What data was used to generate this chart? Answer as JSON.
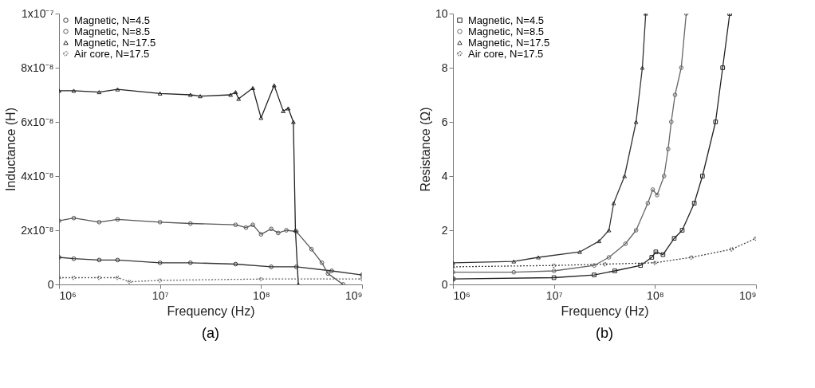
{
  "chart_data": [
    {
      "type": "line",
      "title": "(a)",
      "xlabel": "Frequency (Hz)",
      "ylabel": "Inductance (H)",
      "log": "x",
      "grid": false,
      "legend": "top left",
      "xlim": [
        1000000,
        1000000000
      ],
      "xticks": [
        {
          "value": 1000000,
          "label": "10⁶"
        },
        {
          "value": 10000000,
          "label": "10⁷"
        },
        {
          "value": 100000000,
          "label": "10⁸"
        },
        {
          "value": 1000000000,
          "label": "10⁹"
        }
      ],
      "ylim": [
        0,
        1e-07
      ],
      "yticks": [
        0,
        {
          "value": 2e-08,
          "label": "2x10⁻⁸"
        },
        {
          "value": 4e-08,
          "label": "4x10⁻⁸"
        },
        {
          "value": 6e-08,
          "label": "6x10⁻⁸"
        },
        {
          "value": 8e-08,
          "label": "8x10⁻⁸"
        },
        {
          "value": 1e-07,
          "label": "1x10⁻⁷"
        }
      ],
      "series": [
        {
          "name": "Magnetic, N=4.5",
          "color": "#333333",
          "marker": "circle",
          "line_style": "solid",
          "x": [
            1000000,
            1400000,
            2500000,
            3800000,
            10000000,
            20000000,
            56000000,
            126000000,
            224000000,
            500000000,
            1000000000
          ],
          "values": [
            1e-08,
            9.5e-09,
            9e-09,
            9e-09,
            8e-09,
            8e-09,
            7.5e-09,
            6.5e-09,
            6.5e-09,
            5e-09,
            3.5e-09
          ]
        },
        {
          "name": "Magnetic, N=8.5",
          "color": "#555555",
          "marker": "circle",
          "line_style": "solid",
          "x": [
            1000000,
            1400000,
            2500000,
            3800000,
            10000000,
            20000000,
            56000000,
            71000000,
            83000000,
            100000000,
            126000000,
            148000000,
            178000000,
            224000000,
            316000000,
            400000000,
            460000000,
            650000000
          ],
          "values": [
            2.35e-08,
            2.45e-08,
            2.3e-08,
            2.4e-08,
            2.3e-08,
            2.25e-08,
            2.2e-08,
            2.1e-08,
            2.2e-08,
            1.85e-08,
            2.05e-08,
            1.9e-08,
            2e-08,
            1.95e-08,
            1.3e-08,
            8e-09,
            4e-09,
            0
          ]
        },
        {
          "name": "Magnetic, N=17.5",
          "color": "#222222",
          "marker": "triangle",
          "line_style": "solid",
          "x": [
            1000000,
            1400000,
            2500000,
            3800000,
            10000000,
            20000000,
            25000000,
            50000000,
            56000000,
            60000000,
            83000000,
            100000000,
            135000000,
            166000000,
            186000000,
            209000000,
            219000000,
            234000000
          ],
          "values": [
            7.15e-08,
            7.15e-08,
            7.1e-08,
            7.2e-08,
            7.05e-08,
            7e-08,
            6.95e-08,
            7e-08,
            7.1e-08,
            6.85e-08,
            7.25e-08,
            6.15e-08,
            7.35e-08,
            6.4e-08,
            6.5e-08,
            6e-08,
            2e-08,
            0
          ]
        },
        {
          "name": "Air core, N=17.5",
          "color": "#666666",
          "marker": "cross",
          "line_style": "dotted",
          "x": [
            1000000,
            1400000,
            2500000,
            3800000,
            5000000,
            10000000,
            100000000,
            1000000000
          ],
          "values": [
            2.5e-09,
            2.5e-09,
            2.5e-09,
            2.5e-09,
            1e-09,
            1.5e-09,
            2e-09,
            2e-09
          ]
        }
      ]
    },
    {
      "type": "line",
      "title": "(b)",
      "xlabel": "Frequency (Hz)",
      "ylabel": "Resistance (Ω)",
      "log": "x",
      "grid": false,
      "legend": "top left",
      "xlim": [
        1000000,
        1000000000
      ],
      "xticks": [
        {
          "value": 1000000,
          "label": "10⁶"
        },
        {
          "value": 10000000,
          "label": "10⁷"
        },
        {
          "value": 100000000,
          "label": "10⁸"
        },
        {
          "value": 1000000000,
          "label": "10⁹"
        }
      ],
      "ylim": [
        0,
        10
      ],
      "yticks": [
        0,
        2,
        4,
        6,
        8,
        10
      ],
      "series": [
        {
          "name": "Magnetic, N=4.5",
          "color": "#222222",
          "marker": "square",
          "line_style": "solid",
          "x": [
            1000000,
            10000000,
            25000000,
            40000000,
            72000000,
            93000000,
            102000000,
            120000000,
            155000000,
            186000000,
            245000000,
            295000000,
            398000000,
            468000000,
            550000000
          ],
          "values": [
            0.2,
            0.25,
            0.35,
            0.5,
            0.7,
            1.0,
            1.2,
            1.1,
            1.7,
            2.0,
            3.0,
            4.0,
            6.0,
            8.0,
            10.0
          ]
        },
        {
          "name": "Magnetic, N=8.5",
          "color": "#666666",
          "marker": "circle",
          "line_style": "solid",
          "x": [
            1000000,
            4000000,
            10000000,
            25000000,
            35000000,
            51000000,
            65000000,
            85000000,
            95000000,
            105000000,
            123000000,
            135000000,
            145000000,
            158000000,
            182000000,
            204000000
          ],
          "values": [
            0.45,
            0.45,
            0.5,
            0.7,
            1.0,
            1.5,
            2.0,
            3.0,
            3.5,
            3.3,
            4.0,
            5.0,
            6.0,
            7.0,
            8.0,
            10.0
          ]
        },
        {
          "name": "Magnetic, N=17.5",
          "color": "#333333",
          "marker": "triangle",
          "line_style": "solid",
          "x": [
            1000000,
            4000000,
            7000000,
            18000000,
            28000000,
            35000000,
            39000000,
            50000000,
            65000000,
            75000000,
            81000000
          ],
          "values": [
            0.8,
            0.85,
            1.0,
            1.2,
            1.6,
            2.0,
            3.0,
            4.0,
            6.0,
            8.0,
            10.0
          ]
        },
        {
          "name": "Air core, N=17.5",
          "color": "#444444",
          "marker": "cross",
          "line_style": "dotted",
          "x": [
            1000000,
            10000000,
            32000000,
            100000000,
            230000000,
            575000000,
            1000000000
          ],
          "values": [
            0.65,
            0.7,
            0.75,
            0.8,
            1.0,
            1.3,
            1.7
          ]
        }
      ]
    }
  ]
}
